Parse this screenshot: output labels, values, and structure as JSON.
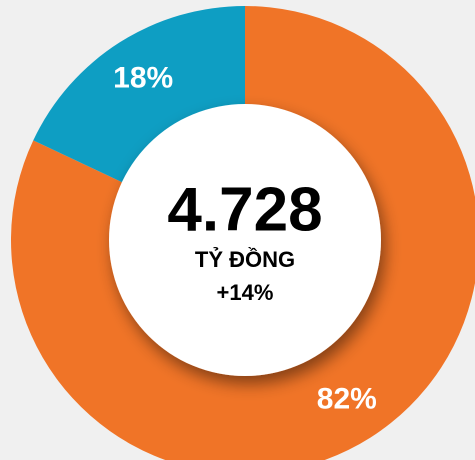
{
  "chart_data": {
    "type": "pie",
    "values": [
      82,
      18
    ],
    "value_labels": [
      "82%",
      "18%"
    ],
    "colors": [
      "#f07427",
      "#0e9ec3"
    ],
    "center_title": "4.728",
    "center_unit": "TỶ ĐỒNG",
    "center_change": "+14%"
  }
}
